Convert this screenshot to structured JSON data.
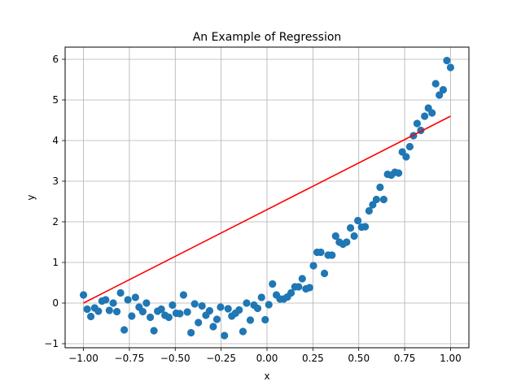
{
  "chart_data": {
    "type": "scatter",
    "title": "An Example of Regression",
    "xlabel": "x",
    "ylabel": "y",
    "xlim": [
      -1.1,
      1.1
    ],
    "ylim": [
      -1.1,
      6.3
    ],
    "grid": true,
    "xticks": [
      -1.0,
      -0.75,
      -0.5,
      -0.25,
      0.0,
      0.25,
      0.5,
      0.75,
      1.0
    ],
    "xtick_labels": [
      "−1.00",
      "−0.75",
      "−0.50",
      "−0.25",
      "0.00",
      "0.25",
      "0.50",
      "0.75",
      "1.00"
    ],
    "yticks": [
      -1,
      0,
      1,
      2,
      3,
      4,
      5,
      6
    ],
    "ytick_labels": [
      "−1",
      "0",
      "1",
      "2",
      "3",
      "4",
      "5",
      "6"
    ],
    "colors": {
      "points": "#1f77b4",
      "line": "#ff0000",
      "grid": "#b0b0b0"
    },
    "series": [
      {
        "kind": "points",
        "x": [
          -1.0,
          -0.98,
          -0.96,
          -0.939,
          -0.919,
          -0.899,
          -0.879,
          -0.859,
          -0.838,
          -0.818,
          -0.798,
          -0.778,
          -0.758,
          -0.737,
          -0.717,
          -0.697,
          -0.677,
          -0.657,
          -0.636,
          -0.616,
          -0.596,
          -0.576,
          -0.556,
          -0.535,
          -0.515,
          -0.495,
          -0.475,
          -0.455,
          -0.434,
          -0.414,
          -0.394,
          -0.374,
          -0.354,
          -0.333,
          -0.313,
          -0.293,
          -0.273,
          -0.253,
          -0.232,
          -0.212,
          -0.192,
          -0.172,
          -0.152,
          -0.131,
          -0.111,
          -0.091,
          -0.071,
          -0.051,
          -0.03,
          -0.01,
          0.01,
          0.03,
          0.051,
          0.071,
          0.091,
          0.111,
          0.131,
          0.152,
          0.172,
          0.192,
          0.212,
          0.232,
          0.253,
          0.273,
          0.293,
          0.313,
          0.333,
          0.354,
          0.374,
          0.394,
          0.414,
          0.434,
          0.455,
          0.475,
          0.495,
          0.515,
          0.535,
          0.556,
          0.576,
          0.596,
          0.616,
          0.636,
          0.657,
          0.677,
          0.697,
          0.717,
          0.737,
          0.758,
          0.778,
          0.798,
          0.818,
          0.838,
          0.859,
          0.879,
          0.899,
          0.919,
          0.939,
          0.96,
          0.98,
          1.0
        ],
        "y": [
          0.2,
          -0.15,
          -0.33,
          -0.12,
          -0.2,
          0.05,
          0.08,
          -0.18,
          0.0,
          -0.21,
          0.25,
          -0.66,
          0.08,
          -0.32,
          0.14,
          -0.1,
          -0.21,
          0.0,
          -0.35,
          -0.68,
          -0.2,
          -0.15,
          -0.3,
          -0.35,
          -0.05,
          -0.25,
          -0.26,
          0.2,
          -0.22,
          -0.73,
          -0.02,
          -0.48,
          -0.07,
          -0.3,
          -0.19,
          -0.58,
          -0.4,
          -0.1,
          -0.8,
          -0.14,
          -0.32,
          -0.25,
          -0.17,
          -0.7,
          0.0,
          -0.42,
          -0.05,
          -0.13,
          0.14,
          -0.41,
          -0.04,
          0.47,
          0.2,
          0.1,
          0.1,
          0.15,
          0.25,
          0.4,
          0.4,
          0.6,
          0.35,
          0.38,
          0.92,
          1.25,
          1.25,
          0.73,
          1.18,
          1.18,
          1.65,
          1.5,
          1.45,
          1.5,
          1.85,
          1.65,
          2.03,
          1.87,
          1.88,
          2.27,
          2.42,
          2.55,
          2.85,
          2.55,
          3.17,
          3.15,
          3.22,
          3.2,
          3.72,
          3.6,
          3.85,
          4.12,
          4.42,
          4.25,
          4.6,
          4.8,
          4.68,
          5.4,
          5.12,
          5.25,
          5.97,
          5.8
        ]
      },
      {
        "kind": "line",
        "x": [
          -1.0,
          1.0
        ],
        "y": [
          0.0,
          4.6
        ]
      }
    ]
  }
}
